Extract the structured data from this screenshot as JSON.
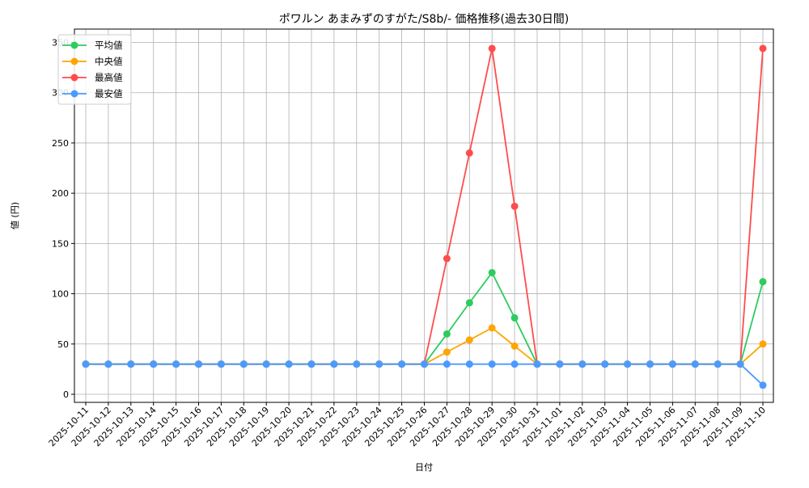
{
  "chart_data": {
    "type": "line",
    "title": "ポワルン あまみずのすがた/S8b/- 価格推移(過去30日間)",
    "xlabel": "日付",
    "ylabel": "値 (円)",
    "ylim": [
      -6,
      361
    ],
    "yticks": [
      0,
      50,
      100,
      150,
      200,
      250,
      300,
      350
    ],
    "grid": true,
    "legend_position": "upper left",
    "x": [
      "2025-10-11",
      "2025-10-12",
      "2025-10-13",
      "2025-10-14",
      "2025-10-15",
      "2025-10-16",
      "2025-10-17",
      "2025-10-18",
      "2025-10-19",
      "2025-10-20",
      "2025-10-21",
      "2025-10-22",
      "2025-10-23",
      "2025-10-24",
      "2025-10-25",
      "2025-10-26",
      "2025-10-27",
      "2025-10-28",
      "2025-10-29",
      "2025-10-30",
      "2025-10-31",
      "2025-11-01",
      "2025-11-02",
      "2025-11-03",
      "2025-11-04",
      "2025-11-05",
      "2025-11-06",
      "2025-11-07",
      "2025-11-08",
      "2025-11-09",
      "2025-11-10"
    ],
    "series": [
      {
        "name": "平均値",
        "color": "#2ecc5f",
        "values": [
          30,
          30,
          30,
          30,
          30,
          30,
          30,
          30,
          30,
          30,
          30,
          30,
          30,
          30,
          30,
          30,
          60,
          91,
          121,
          76,
          30,
          30,
          30,
          30,
          30,
          30,
          30,
          30,
          30,
          30,
          112
        ]
      },
      {
        "name": "中央値",
        "color": "#ffa500",
        "values": [
          30,
          30,
          30,
          30,
          30,
          30,
          30,
          30,
          30,
          30,
          30,
          30,
          30,
          30,
          30,
          30,
          42,
          54,
          66,
          48,
          30,
          30,
          30,
          30,
          30,
          30,
          30,
          30,
          30,
          30,
          50
        ]
      },
      {
        "name": "最高値",
        "color": "#ff4c4c",
        "values": [
          30,
          30,
          30,
          30,
          30,
          30,
          30,
          30,
          30,
          30,
          30,
          30,
          30,
          30,
          30,
          30,
          135,
          240,
          344,
          187,
          30,
          30,
          30,
          30,
          30,
          30,
          30,
          30,
          30,
          30,
          344
        ]
      },
      {
        "name": "最安値",
        "color": "#4c9aff",
        "values": [
          30,
          30,
          30,
          30,
          30,
          30,
          30,
          30,
          30,
          30,
          30,
          30,
          30,
          30,
          30,
          30,
          30,
          30,
          30,
          30,
          30,
          30,
          30,
          30,
          30,
          30,
          30,
          30,
          30,
          30,
          9
        ]
      }
    ]
  }
}
